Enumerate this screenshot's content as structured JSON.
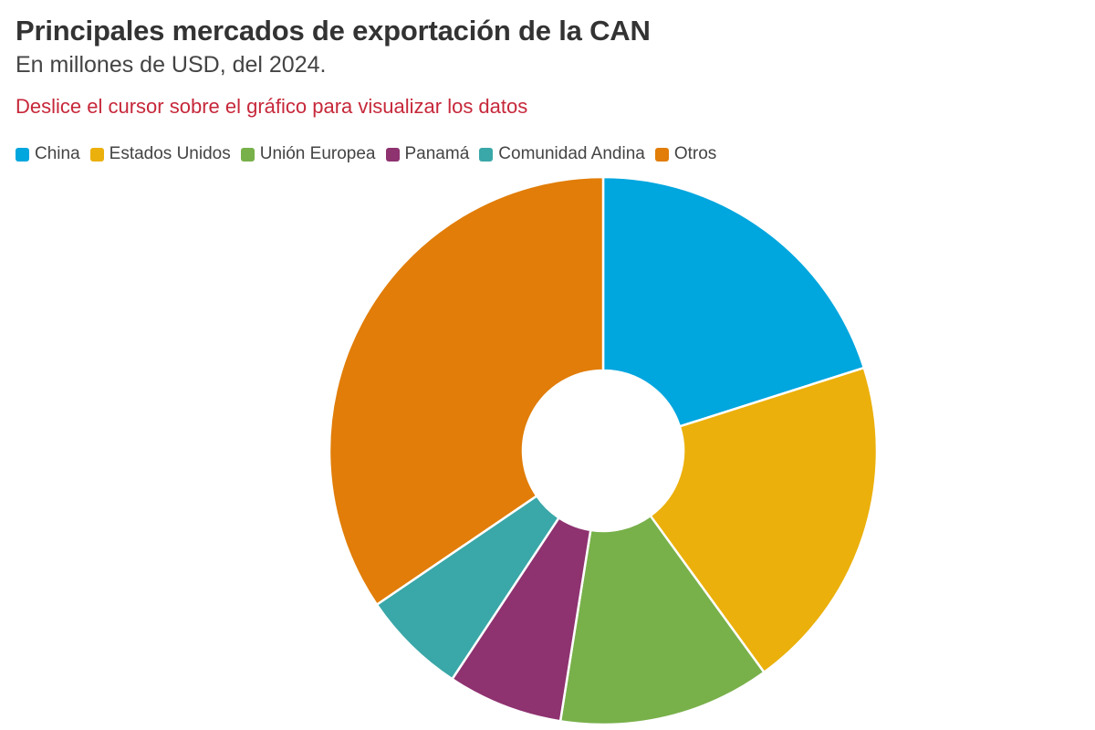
{
  "header": {
    "title": "Principales mercados de exportación de la CAN",
    "subtitle": "En millones de USD, del 2024.",
    "hint": "Deslice el cursor sobre el gráfico para visualizar los datos"
  },
  "chart_data": {
    "type": "pie",
    "variant": "donut",
    "title": "Principales mercados de exportación de la CAN",
    "subtitle": "En millones de USD, del 2024.",
    "legend_position": "top-left",
    "categories": [
      "China",
      "Estados Unidos",
      "Unión Europea",
      "Panamá",
      "Comunidad Andina",
      "Otros"
    ],
    "values": [
      20.1,
      19.9,
      12.5,
      6.8,
      6.2,
      34.5
    ],
    "units": "share of total (%) — estimated from slice angles",
    "colors": [
      "#00a6de",
      "#ebb00b",
      "#78b04a",
      "#8e3270",
      "#3aa7a8",
      "#e17d08"
    ]
  }
}
